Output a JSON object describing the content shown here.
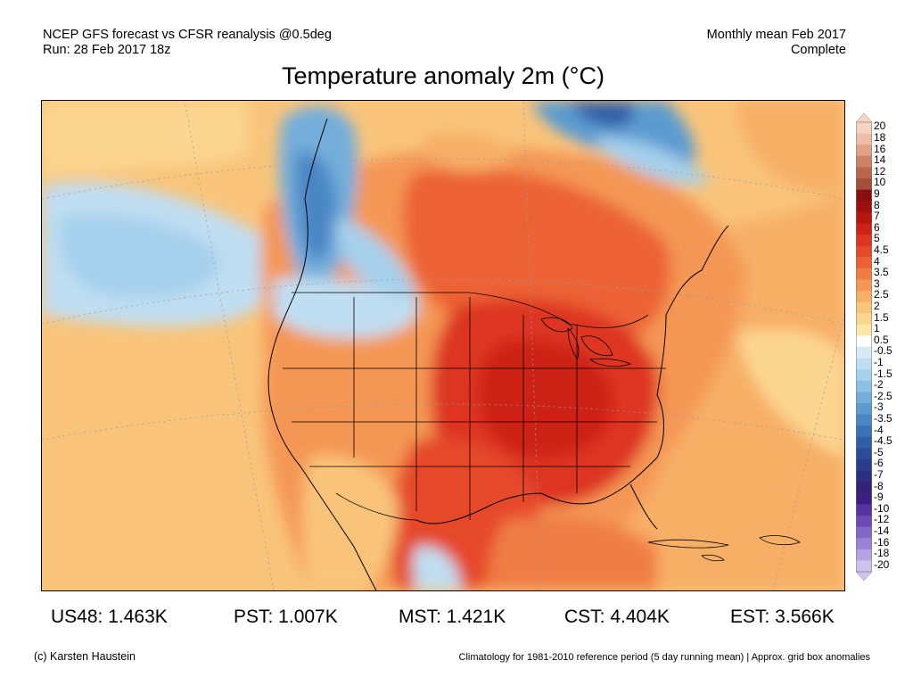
{
  "header": {
    "left_line1": "NCEP GFS forecast vs CFSR reanalysis @0.5deg",
    "left_line2": "Run: 28 Feb 2017 18z",
    "right_line1": "Monthly mean Feb 2017",
    "right_line2": "Complete"
  },
  "title": "Temperature anomaly 2m (°C)",
  "colorbar": {
    "labels": [
      "20",
      "18",
      "16",
      "14",
      "12",
      "10",
      "9",
      "8",
      "7",
      "6",
      "5",
      "4.5",
      "4",
      "3.5",
      "3",
      "2.5",
      "2",
      "1.5",
      "1",
      "0.5",
      "-0.5",
      "-1",
      "-1.5",
      "-2",
      "-2.5",
      "-3",
      "-3.5",
      "-4",
      "-4.5",
      "-5",
      "-6",
      "-7",
      "-8",
      "-9",
      "-10",
      "-12",
      "-14",
      "-16",
      "-18",
      "-20"
    ],
    "colors": [
      "#f6d4c0",
      "#eebfa6",
      "#e0a184",
      "#cc8266",
      "#b8674e",
      "#a45038",
      "#8a1010",
      "#a00f10",
      "#b8150f",
      "#cc2217",
      "#dd3520",
      "#e54a2b",
      "#ec6236",
      "#f07d44",
      "#f49754",
      "#f7af66",
      "#f9c47a",
      "#fbd690",
      "#fde6aa",
      "#ffffff",
      "#d8eaf6",
      "#c0def2",
      "#a6d0ec",
      "#8cc0e4",
      "#73aedb",
      "#5c9bd0",
      "#4986c4",
      "#3b71b7",
      "#315ea8",
      "#2c4c9a",
      "#2a3d8c",
      "#2c2f80",
      "#322376",
      "#3d1e82",
      "#5533a0",
      "#6c4ab6",
      "#8465c8",
      "#9c82d6",
      "#b6a2e2",
      "#d0c2ee"
    ]
  },
  "stats": [
    {
      "label": "US48: 1.463K"
    },
    {
      "label": "PST: 1.007K"
    },
    {
      "label": "MST: 1.421K"
    },
    {
      "label": "CST: 4.404K"
    },
    {
      "label": "EST: 3.566K"
    }
  ],
  "footer": {
    "left": "(c) Karsten Haustein",
    "right": "Climatology for 1981-2010 reference period (5 day running mean) | Approx. grid box anomalies"
  }
}
